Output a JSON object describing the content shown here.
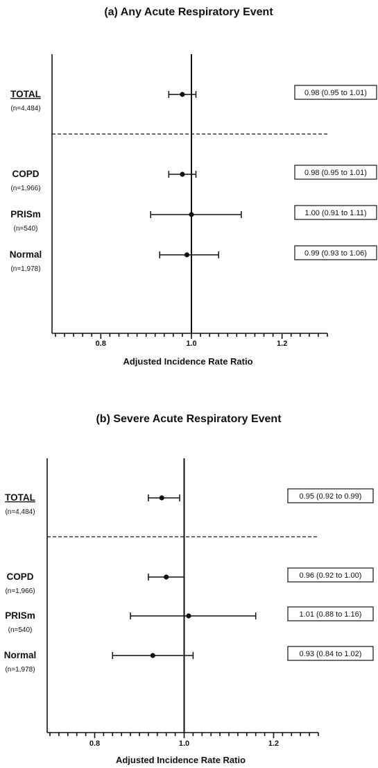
{
  "chart_data": [
    {
      "type": "forest",
      "title": "(a) Any Acute Respiratory Event",
      "xlabel": "Adjusted Incidence Rate Ratio",
      "xlim": [
        0.7,
        1.3
      ],
      "xticks": [
        "0.8",
        "1.0",
        "1.2"
      ],
      "reference_line": 1.0,
      "rows": [
        {
          "label": "TOTAL",
          "n": "(n=4,484)",
          "estimate": 0.98,
          "lower": 0.95,
          "upper": 1.01,
          "ci_text": "0.98 (0.95 to 1.01)",
          "underline": true
        },
        {
          "label": "COPD",
          "n": "(n=1,966)",
          "estimate": 0.98,
          "lower": 0.95,
          "upper": 1.01,
          "ci_text": "0.98 (0.95 to 1.01)"
        },
        {
          "label": "PRISm",
          "n": "(n=540)",
          "estimate": 1.0,
          "lower": 0.91,
          "upper": 1.11,
          "ci_text": "1.00 (0.91 to 1.11)"
        },
        {
          "label": "Normal",
          "n": "(n=1,978)",
          "estimate": 0.99,
          "lower": 0.93,
          "upper": 1.06,
          "ci_text": "0.99 (0.93 to 1.06)"
        }
      ]
    },
    {
      "type": "forest",
      "title": "(b) Severe Acute Respiratory Event",
      "xlabel": "Adjusted Incidence Rate Ratio",
      "xlim": [
        0.7,
        1.3
      ],
      "xticks": [
        "0.8",
        "1.0",
        "1.2"
      ],
      "reference_line": 1.0,
      "rows": [
        {
          "label": "TOTAL",
          "n": "(n=4,484)",
          "estimate": 0.95,
          "lower": 0.92,
          "upper": 0.99,
          "ci_text": "0.95 (0.92 to 0.99)",
          "underline": true
        },
        {
          "label": "COPD",
          "n": "(n=1,966)",
          "estimate": 0.96,
          "lower": 0.92,
          "upper": 1.0,
          "ci_text": "0.96 (0.92 to 1.00)"
        },
        {
          "label": "PRISm",
          "n": "(n=540)",
          "estimate": 1.01,
          "lower": 0.88,
          "upper": 1.16,
          "ci_text": "1.01 (0.88 to 1.16)"
        },
        {
          "label": "Normal",
          "n": "(n=1,978)",
          "estimate": 0.93,
          "lower": 0.84,
          "upper": 1.02,
          "ci_text": "0.93 (0.84 to 1.02)"
        }
      ]
    }
  ]
}
